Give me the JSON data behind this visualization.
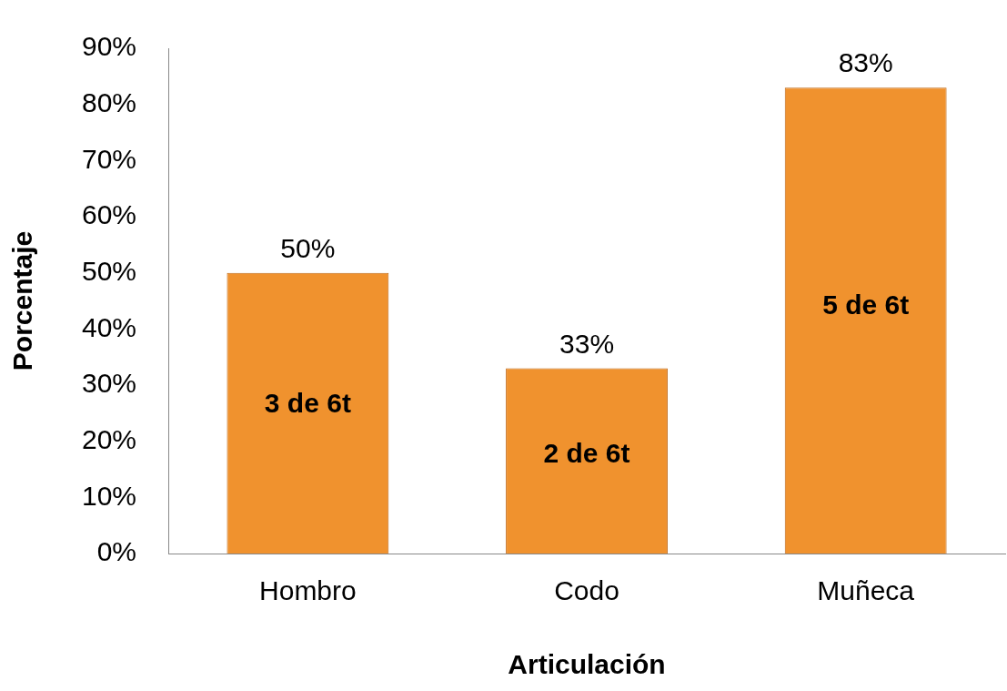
{
  "chart_data": {
    "type": "bar",
    "xlabel": "Articulación",
    "ylabel": "Porcentaje",
    "categories": [
      "Hombro",
      "Codo",
      "Muñeca"
    ],
    "values": [
      50,
      33,
      83
    ],
    "value_labels": [
      "50%",
      "33%",
      "83%"
    ],
    "color": "#f0922e",
    "ylim": [
      0,
      90
    ],
    "yticks": [
      {
        "value": 0,
        "label": "0%"
      },
      {
        "value": 10,
        "label": "10%"
      },
      {
        "value": 20,
        "label": "20%"
      },
      {
        "value": 30,
        "label": "30%"
      },
      {
        "value": 40,
        "label": "40%"
      },
      {
        "value": 50,
        "label": "50%"
      },
      {
        "value": 60,
        "label": "60%"
      },
      {
        "value": 70,
        "label": "70%"
      },
      {
        "value": 80,
        "label": "80%"
      },
      {
        "value": 90,
        "label": "90%"
      }
    ],
    "grid": false,
    "annotations": [
      "3 de 6t",
      "2 de 6t",
      "5 de 6t"
    ]
  }
}
